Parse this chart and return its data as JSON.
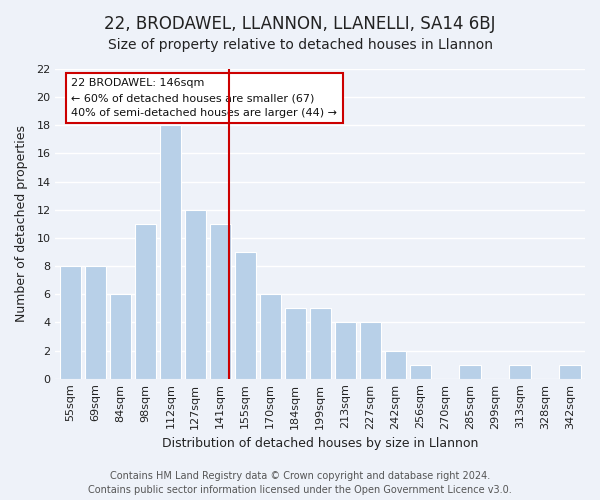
{
  "title": "22, BRODAWEL, LLANNON, LLANELLI, SA14 6BJ",
  "subtitle": "Size of property relative to detached houses in Llannon",
  "xlabel": "Distribution of detached houses by size in Llannon",
  "ylabel": "Number of detached properties",
  "bar_color": "#b8d0e8",
  "bar_edge_color": "#ffffff",
  "categories": [
    "55sqm",
    "69sqm",
    "84sqm",
    "98sqm",
    "112sqm",
    "127sqm",
    "141sqm",
    "155sqm",
    "170sqm",
    "184sqm",
    "199sqm",
    "213sqm",
    "227sqm",
    "242sqm",
    "256sqm",
    "270sqm",
    "285sqm",
    "299sqm",
    "313sqm",
    "328sqm",
    "342sqm"
  ],
  "values": [
    8,
    8,
    6,
    11,
    18,
    12,
    11,
    9,
    6,
    5,
    5,
    4,
    4,
    2,
    1,
    0,
    1,
    0,
    1,
    0,
    1
  ],
  "ylim": [
    0,
    22
  ],
  "yticks": [
    0,
    2,
    4,
    6,
    8,
    10,
    12,
    14,
    16,
    18,
    20,
    22
  ],
  "vline_color": "#cc0000",
  "annotation_title": "22 BRODAWEL: 146sqm",
  "annotation_line1": "← 60% of detached houses are smaller (67)",
  "annotation_line2": "40% of semi-detached houses are larger (44) →",
  "footer1": "Contains HM Land Registry data © Crown copyright and database right 2024.",
  "footer2": "Contains public sector information licensed under the Open Government Licence v3.0.",
  "background_color": "#eef2f9",
  "grid_color": "#ffffff",
  "title_fontsize": 12,
  "subtitle_fontsize": 10,
  "axis_label_fontsize": 9,
  "tick_fontsize": 8,
  "footer_fontsize": 7
}
